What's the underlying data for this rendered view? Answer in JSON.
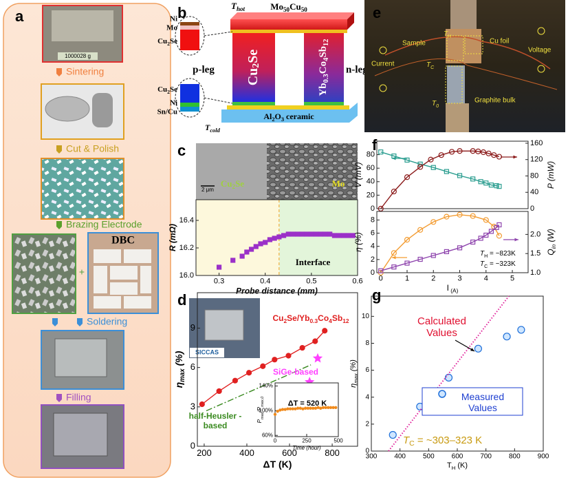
{
  "panel_labels": [
    "a",
    "b",
    "c",
    "d",
    "e",
    "f",
    "g"
  ],
  "panel_a": {
    "balance_reading": "1000028 g",
    "steps": [
      "Sintering",
      "Cut & Polish",
      "Brazing Electrode",
      "Soldering",
      "Filling"
    ],
    "dbc": "DBC",
    "plus": "+"
  },
  "panel_b": {
    "t_hot": [
      "T",
      "hot"
    ],
    "top_electrode": [
      "Mo",
      "50",
      "Cu",
      "50"
    ],
    "ni_top": "Ni",
    "mo_top": "Mo",
    "cu2se_top": [
      "Cu",
      "2",
      "Se"
    ],
    "p_leg": "p-leg",
    "p_leg_material": [
      "Cu",
      "2",
      "Se"
    ],
    "n_leg_material": [
      "Yb",
      "0.3",
      "Co",
      "4",
      "Sb",
      "12"
    ],
    "n_leg": "n-leg",
    "cu2se_bottom": [
      "Cu",
      "2",
      "Se"
    ],
    "ni_bottom": "Ni",
    "sn_cu": "Sn/Cu",
    "substrate": [
      "Al",
      "2",
      "O",
      "3",
      " ceramic"
    ],
    "t_cold": [
      "T",
      "cold"
    ]
  },
  "panel_c_image": {
    "scale_bar": "2 μm",
    "left_phase": [
      "Cu",
      "2",
      "Se"
    ],
    "right_phase": "Mo"
  },
  "panel_d_photo": {
    "logo": "SICCAS"
  },
  "panel_e": {
    "t_h": [
      "T",
      "H"
    ],
    "sample": "Sample",
    "cu_foil": "Cu foil",
    "current": "Current",
    "voltage": "Voltage",
    "t_c": [
      "T",
      "C"
    ],
    "graphite": "Graphite bulk",
    "t_0": [
      "T",
      "0"
    ]
  },
  "chart_data": [
    {
      "type": "scatter",
      "xlabel": "Probe distance (mm)",
      "ylabel": "R (mΩ)",
      "annotation": "Interface",
      "interface_x": 0.43,
      "xlim": [
        0.25,
        0.6
      ],
      "ylim": [
        16.0,
        16.55
      ],
      "xticks": [
        0.3,
        0.4,
        0.5,
        0.6
      ],
      "yticks": [
        {
          "value": 16,
          "label": "16.0"
        },
        16.2,
        16.4
      ],
      "series": [
        {
          "color": "#9b30c8",
          "marker": "square",
          "filled": true,
          "x": [
            0.3,
            0.33,
            0.35,
            0.36,
            0.37,
            0.38,
            0.39,
            0.4,
            0.41,
            0.42,
            0.43,
            0.44,
            0.45,
            0.46,
            0.47,
            0.48,
            0.49,
            0.5,
            0.51,
            0.52,
            0.53,
            0.54,
            0.55,
            0.56,
            0.57,
            0.58,
            0.59
          ],
          "values": [
            16.06,
            16.11,
            16.14,
            16.17,
            16.19,
            16.21,
            16.23,
            16.24,
            16.26,
            16.27,
            16.28,
            16.29,
            16.3,
            16.3,
            16.3,
            16.3,
            16.3,
            16.3,
            16.3,
            16.3,
            16.3,
            16.3,
            16.29,
            16.29,
            16.29,
            16.29,
            16.29
          ]
        }
      ]
    },
    {
      "type": "line",
      "xlabel": "ΔT (K)",
      "ylabel": [
        "η",
        "max",
        " (%)"
      ],
      "xlim": [
        168,
        919
      ],
      "ylim": [
        0,
        11.7
      ],
      "xticks": [
        200,
        400,
        600,
        800
      ],
      "yticks": [
        0,
        3,
        6,
        9
      ],
      "series": [
        {
          "name": [
            "Cu",
            "2",
            "Se/Yb",
            "0.3",
            "Co",
            "4",
            "Sb",
            "12"
          ],
          "color": "#e02020",
          "marker": "circle",
          "filled": true,
          "line": "solid",
          "x": [
            190,
            270,
            345,
            410,
            475,
            530,
            595,
            660,
            720,
            765
          ],
          "values": [
            3.2,
            4.2,
            5.0,
            5.6,
            6.1,
            6.6,
            6.9,
            7.5,
            8.0,
            8.8
          ]
        },
        {
          "name": "half-Heusler -based",
          "color": "#3a8a20",
          "marker": "none",
          "line": "dashdot",
          "x": [
            210,
            700
          ],
          "values": [
            2.7,
            6.2
          ]
        },
        {
          "name": "SiGe-based",
          "color": "#ff40ff",
          "marker": "star",
          "filled": true,
          "x": [
            732,
            694
          ],
          "values": [
            6.7,
            4.9
          ]
        }
      ]
    },
    {
      "type": "scatter",
      "xlabel": "Time (hour)",
      "ylabel": [
        "P",
        "max",
        "/P",
        "max,0"
      ],
      "annotation": "ΔT  = 520 K",
      "xlim": [
        0,
        500
      ],
      "ylim": [
        58,
        145
      ],
      "xticks": [
        0,
        250,
        500
      ],
      "yticks": [
        {
          "value": 60,
          "label": "60%"
        },
        {
          "value": 100,
          "label": "100%"
        },
        {
          "value": 140,
          "label": "140%"
        }
      ],
      "series": [
        {
          "color": "#f08a1c",
          "marker": "dot",
          "filled": true,
          "x": [
            0,
            20,
            40,
            60,
            80,
            100,
            120,
            140,
            160,
            180,
            200,
            220,
            240,
            260,
            280,
            300,
            320,
            340,
            360,
            380,
            400,
            420,
            440,
            460,
            480
          ],
          "values": [
            94,
            99,
            101,
            102,
            102,
            103,
            103,
            103,
            103,
            104,
            104,
            103,
            104,
            104,
            104,
            104,
            104,
            105,
            104,
            105,
            105,
            105,
            105,
            105,
            105
          ]
        }
      ]
    },
    {
      "type": "line",
      "ylabel": "V (mV)",
      "y2label": "P (mW)",
      "xlim": [
        -0.15,
        5.6
      ],
      "ylim": [
        0,
        100
      ],
      "yticks": [
        0,
        20,
        40,
        60,
        80
      ],
      "y2lim": [
        0,
        165
      ],
      "y2ticks": [
        0,
        40,
        80,
        120,
        160
      ],
      "series": [
        {
          "color": "#2a9d8f",
          "marker": "square",
          "line": "solid",
          "x": [
            0,
            0.5,
            1.0,
            1.5,
            2.0,
            2.5,
            3.0,
            3.5,
            3.8,
            4.0,
            4.2,
            4.4,
            4.5
          ],
          "values": [
            84,
            78,
            72,
            66,
            61,
            55,
            49,
            44,
            40,
            38,
            35,
            34,
            33
          ]
        },
        {
          "color": "#8b1a1a",
          "marker": "circle",
          "line": "solid",
          "axis": "y2",
          "x": [
            0,
            0.5,
            1.0,
            1.5,
            1.9,
            2.3,
            2.7,
            3.0,
            3.5,
            3.7,
            3.9,
            4.1,
            4.3,
            4.5
          ],
          "values": [
            0,
            42,
            77,
            102,
            120,
            131,
            139,
            141,
            141,
            140,
            138,
            135,
            131,
            127
          ]
        }
      ]
    },
    {
      "type": "line",
      "xlabel": [
        "I",
        " (A)"
      ],
      "ylabel": "η (%)",
      "y2label": [
        "Q",
        "in",
        " (W)"
      ],
      "annotations": [
        [
          "T",
          "H",
          " = ~823K"
        ],
        [
          "T",
          "C",
          " = ~323K"
        ]
      ],
      "xlim": [
        -0.15,
        5.6
      ],
      "xticks": [
        0,
        1,
        2,
        3,
        4,
        5
      ],
      "ylim": [
        0,
        9.3
      ],
      "yticks": [
        0,
        2,
        4,
        6,
        8
      ],
      "y2lim": [
        1,
        2.6
      ],
      "y2ticks": [
        {
          "value": 1,
          "label": "1.0"
        },
        1.5,
        {
          "value": 2,
          "label": "2.0"
        }
      ],
      "series": [
        {
          "color": "#f39c32",
          "marker": "circle",
          "line": "solid",
          "x": [
            0,
            0.5,
            1.0,
            1.5,
            2.0,
            2.5,
            3.0,
            3.5,
            4.0,
            4.3,
            4.5
          ],
          "values": [
            0,
            3.0,
            5.0,
            6.5,
            7.7,
            8.5,
            8.8,
            8.6,
            8.0,
            7.0,
            5.6
          ]
        },
        {
          "color": "#8e44ad",
          "marker": "square",
          "line": "solid",
          "axis": "y2",
          "x": [
            0,
            0.5,
            1.0,
            1.5,
            2.0,
            2.5,
            3.0,
            3.5,
            3.8,
            4.0,
            4.2,
            4.4,
            4.5
          ],
          "values": [
            1.05,
            1.15,
            1.25,
            1.35,
            1.45,
            1.55,
            1.65,
            1.8,
            1.9,
            1.98,
            2.08,
            2.18,
            2.25
          ]
        }
      ]
    },
    {
      "type": "scatter",
      "xlabel": [
        "T",
        "H",
        " (K)"
      ],
      "ylabel": [
        "η",
        "max",
        " (%)"
      ],
      "annotation": [
        "T",
        "C",
        " = ~303–323 K"
      ],
      "xlim": [
        300,
        900
      ],
      "ylim": [
        0,
        11.5
      ],
      "xticks": [
        300,
        400,
        500,
        600,
        700,
        800,
        900
      ],
      "yticks": [
        0,
        2,
        4,
        6,
        8,
        10
      ],
      "series": [
        {
          "name": "Measured Values",
          "color": "#1e6fd9",
          "fillcolor": "#cfe6ff",
          "marker": "circle",
          "x": [
            375,
            470,
            570,
            673,
            773,
            823
          ],
          "values": [
            1.2,
            3.3,
            5.45,
            7.6,
            8.5,
            9.0
          ]
        },
        {
          "name": "Calculated Values",
          "color": "#e0209a",
          "marker": "none",
          "line": "dotted",
          "x": [
            360,
            780
          ],
          "values": [
            0,
            11.5
          ]
        }
      ]
    }
  ]
}
